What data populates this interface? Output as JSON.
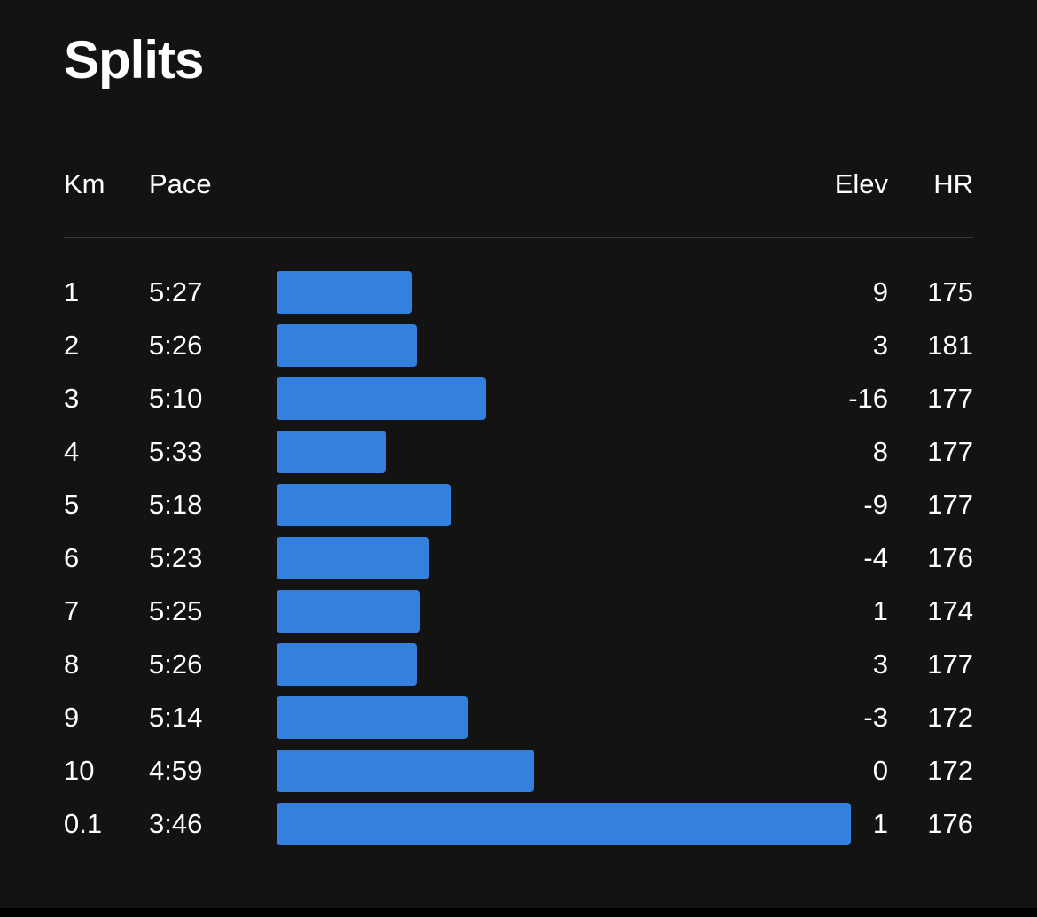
{
  "title": "Splits",
  "headers": {
    "km": "Km",
    "pace": "Pace",
    "elev": "Elev",
    "hr": "HR"
  },
  "colors": {
    "bar": "#3380dd",
    "background": "#131313",
    "divider": "#3a3a3a"
  },
  "splits": [
    {
      "km": "1",
      "pace": "5:27",
      "elev": "9",
      "hr": "175",
      "pace_seconds": 327
    },
    {
      "km": "2",
      "pace": "5:26",
      "elev": "3",
      "hr": "181",
      "pace_seconds": 326
    },
    {
      "km": "3",
      "pace": "5:10",
      "elev": "-16",
      "hr": "177",
      "pace_seconds": 310
    },
    {
      "km": "4",
      "pace": "5:33",
      "elev": "8",
      "hr": "177",
      "pace_seconds": 333
    },
    {
      "km": "5",
      "pace": "5:18",
      "elev": "-9",
      "hr": "177",
      "pace_seconds": 318
    },
    {
      "km": "6",
      "pace": "5:23",
      "elev": "-4",
      "hr": "176",
      "pace_seconds": 323
    },
    {
      "km": "7",
      "pace": "5:25",
      "elev": "1",
      "hr": "174",
      "pace_seconds": 325
    },
    {
      "km": "8",
      "pace": "5:26",
      "elev": "3",
      "hr": "177",
      "pace_seconds": 326
    },
    {
      "km": "9",
      "pace": "5:14",
      "elev": "-3",
      "hr": "172",
      "pace_seconds": 314
    },
    {
      "km": "10",
      "pace": "4:59",
      "elev": "0",
      "hr": "172",
      "pace_seconds": 299
    },
    {
      "km": "0.1",
      "pace": "3:46",
      "elev": "1",
      "hr": "176",
      "pace_seconds": 226
    }
  ]
}
